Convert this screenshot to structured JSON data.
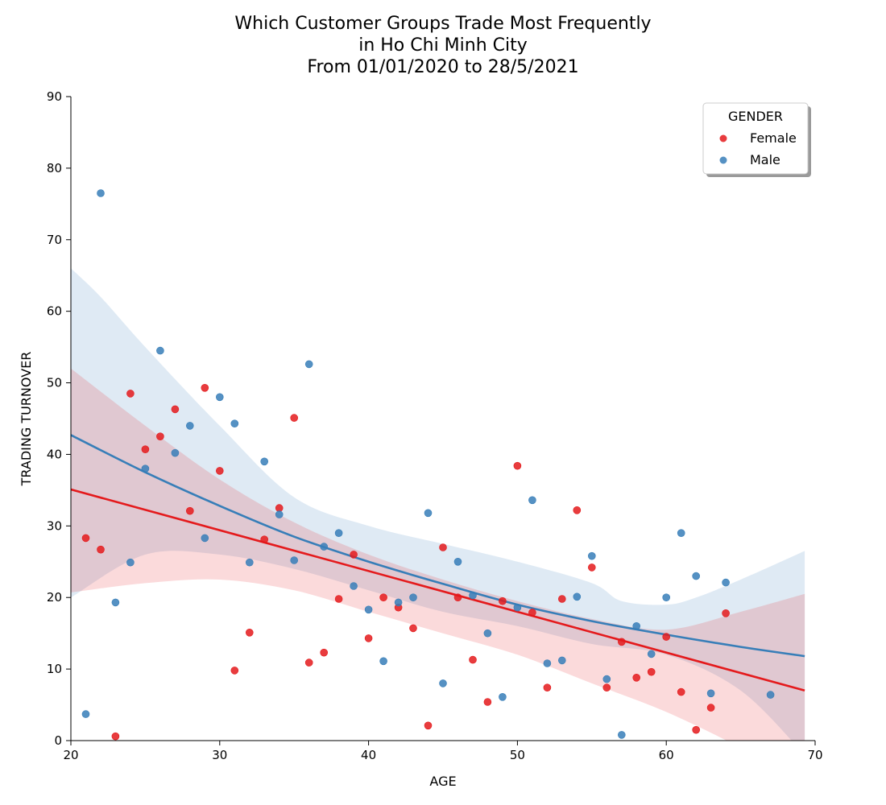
{
  "chart_data": {
    "type": "scatter",
    "title_lines": [
      "Which Customer Groups Trade Most Frequently",
      "in Ho Chi Minh City",
      "From 01/01/2020 to 28/5/2021"
    ],
    "xlabel": "AGE",
    "ylabel": "TRADING TURNOVER",
    "xlim": [
      20,
      70
    ],
    "ylim": [
      0,
      90
    ],
    "xticks": [
      "20",
      "30",
      "40",
      "50",
      "60",
      "70"
    ],
    "yticks": [
      "0",
      "10",
      "20",
      "30",
      "40",
      "50",
      "60",
      "70",
      "80",
      "90"
    ],
    "grid": false,
    "legend": {
      "title": "GENDER",
      "placement": "top-right"
    },
    "series": [
      {
        "name": "Female",
        "color": "#e41a1c",
        "band_color": "#f8d6d6",
        "points": [
          [
            21,
            28.3
          ],
          [
            22,
            26.7
          ],
          [
            23,
            0.6
          ],
          [
            24,
            48.5
          ],
          [
            25,
            40.7
          ],
          [
            26,
            42.5
          ],
          [
            27,
            46.3
          ],
          [
            28,
            32.1
          ],
          [
            29,
            49.3
          ],
          [
            30,
            37.7
          ],
          [
            31,
            9.8
          ],
          [
            32,
            15.1
          ],
          [
            33,
            28.1
          ],
          [
            34,
            32.5
          ],
          [
            35,
            45.1
          ],
          [
            36,
            10.9
          ],
          [
            37,
            12.3
          ],
          [
            38,
            19.8
          ],
          [
            39,
            26.0
          ],
          [
            40,
            14.3
          ],
          [
            41,
            20.0
          ],
          [
            42,
            18.6
          ],
          [
            43,
            15.7
          ],
          [
            45,
            27.0
          ],
          [
            44,
            2.1
          ],
          [
            46,
            20.0
          ],
          [
            47,
            11.3
          ],
          [
            48,
            5.4
          ],
          [
            49,
            19.5
          ],
          [
            50,
            38.4
          ],
          [
            51,
            17.9
          ],
          [
            52,
            7.4
          ],
          [
            53,
            19.8
          ],
          [
            54,
            32.2
          ],
          [
            55,
            24.2
          ],
          [
            56,
            7.4
          ],
          [
            57,
            13.8
          ],
          [
            58,
            8.8
          ],
          [
            59,
            9.6
          ],
          [
            60,
            14.5
          ],
          [
            61,
            6.8
          ],
          [
            62,
            1.5
          ],
          [
            63,
            4.6
          ],
          [
            64,
            17.8
          ]
        ],
        "fit": {
          "start": [
            20,
            35.1
          ],
          "end": [
            69.3,
            7.0
          ]
        },
        "ci_upper": [
          [
            20,
            52.0
          ],
          [
            25,
            44.0
          ],
          [
            30,
            36.5
          ],
          [
            35,
            30.5
          ],
          [
            40,
            26.0
          ],
          [
            45,
            22.5
          ],
          [
            50,
            19.5
          ],
          [
            55,
            17.0
          ],
          [
            60,
            15.5
          ],
          [
            65,
            18.0
          ],
          [
            69.3,
            20.5
          ]
        ],
        "ci_lower": [
          [
            20,
            20.7
          ],
          [
            25,
            22.0
          ],
          [
            30,
            22.5
          ],
          [
            35,
            21.0
          ],
          [
            40,
            18.0
          ],
          [
            45,
            15.0
          ],
          [
            50,
            12.0
          ],
          [
            55,
            8.0
          ],
          [
            60,
            4.0
          ],
          [
            65,
            -1.0
          ],
          [
            69.3,
            -6.0
          ]
        ]
      },
      {
        "name": "Male",
        "color": "#377eb8",
        "band_color": "#dde8f3",
        "points": [
          [
            21,
            3.7
          ],
          [
            22,
            76.5
          ],
          [
            23,
            19.3
          ],
          [
            24,
            24.9
          ],
          [
            25,
            38.0
          ],
          [
            26,
            54.5
          ],
          [
            27,
            40.2
          ],
          [
            28,
            44.0
          ],
          [
            29,
            28.3
          ],
          [
            30,
            48.0
          ],
          [
            31,
            44.3
          ],
          [
            32,
            24.9
          ],
          [
            33,
            39.0
          ],
          [
            34,
            31.6
          ],
          [
            35,
            25.2
          ],
          [
            36,
            52.6
          ],
          [
            37,
            27.1
          ],
          [
            38,
            29.0
          ],
          [
            39,
            21.6
          ],
          [
            40,
            18.3
          ],
          [
            41,
            11.1
          ],
          [
            42,
            19.3
          ],
          [
            43,
            20.0
          ],
          [
            44,
            31.8
          ],
          [
            45,
            8.0
          ],
          [
            46,
            25.0
          ],
          [
            47,
            20.3
          ],
          [
            48,
            15.0
          ],
          [
            49,
            6.1
          ],
          [
            50,
            18.6
          ],
          [
            51,
            33.6
          ],
          [
            52,
            10.8
          ],
          [
            53,
            11.2
          ],
          [
            54,
            20.1
          ],
          [
            55,
            25.8
          ],
          [
            56,
            8.6
          ],
          [
            57,
            0.8
          ],
          [
            58,
            16.0
          ],
          [
            59,
            12.1
          ],
          [
            60,
            20.0
          ],
          [
            61,
            29.0
          ],
          [
            62,
            23.0
          ],
          [
            63,
            6.6
          ],
          [
            64,
            22.1
          ],
          [
            67,
            6.4
          ]
        ],
        "fit": [
          [
            20,
            42.7
          ],
          [
            25,
            37.5
          ],
          [
            30,
            32.8
          ],
          [
            35,
            28.5
          ],
          [
            40,
            25.0
          ],
          [
            45,
            21.9
          ],
          [
            50,
            19.0
          ],
          [
            55,
            16.7
          ],
          [
            60,
            14.8
          ],
          [
            65,
            13.1
          ],
          [
            69.3,
            11.8
          ]
        ],
        "ci_upper": [
          [
            20,
            66.0
          ],
          [
            22,
            62.0
          ],
          [
            25,
            55.0
          ],
          [
            30,
            44.0
          ],
          [
            35,
            34.0
          ],
          [
            40,
            30.0
          ],
          [
            45,
            27.5
          ],
          [
            50,
            25.0
          ],
          [
            55,
            22.0
          ],
          [
            57,
            19.5
          ],
          [
            60,
            19.0
          ],
          [
            62,
            20.0
          ],
          [
            65,
            22.5
          ],
          [
            69.3,
            26.5
          ]
        ],
        "ci_lower": [
          [
            20,
            20.0
          ],
          [
            25,
            26.0
          ],
          [
            30,
            26.0
          ],
          [
            35,
            24.0
          ],
          [
            40,
            21.0
          ],
          [
            45,
            18.0
          ],
          [
            50,
            16.0
          ],
          [
            55,
            13.5
          ],
          [
            60,
            12.0
          ],
          [
            65,
            7.0
          ],
          [
            69.3,
            -2.0
          ]
        ]
      }
    ]
  }
}
